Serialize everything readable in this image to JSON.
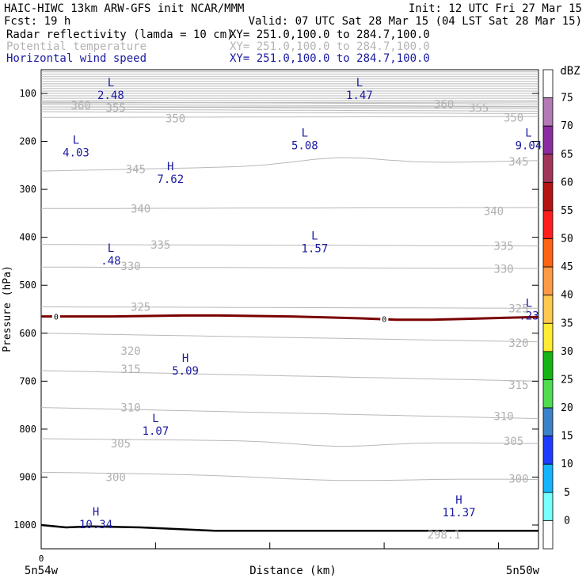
{
  "header": {
    "title_left": "HAIC-HIWC 13km ARW-GFS init   NCAR/MMM",
    "title_right": "Init: 12 UTC Fri 27 Mar 15",
    "fcst": "Fcst:   19 h",
    "valid": "Valid: 07 UTC Sat 28 Mar 15 (04 LST Sat 28 Mar 15)",
    "fields": [
      {
        "name": "Radar reflectivity (lamda = 10 cm)",
        "xy": "XY= 251.0,100.0 to 284.7,100.0",
        "color": "#000000"
      },
      {
        "name": "Potential temperature",
        "xy": "XY= 251.0,100.0 to 284.7,100.0",
        "color": "#b4b4b4"
      },
      {
        "name": "Horizontal wind speed",
        "xy": "XY= 251.0,100.0 to 284.7,100.0",
        "color": "#1a1aa0"
      }
    ]
  },
  "chart_data": {
    "type": "line",
    "ylabel": "Pressure (hPa)",
    "xlabel": "Distance (km)",
    "x_left_label": "5n54w",
    "x_right_label": "5n50w",
    "x_origin_label": "0",
    "y_ticks": [
      100,
      200,
      300,
      400,
      500,
      600,
      700,
      800,
      900,
      1000
    ],
    "y_range": [
      50,
      1050
    ],
    "theta_labels": [
      {
        "v": "360",
        "x": 0.08,
        "p": 125
      },
      {
        "v": "355",
        "x": 0.15,
        "p": 130
      },
      {
        "v": "350",
        "x": 0.27,
        "p": 152
      },
      {
        "v": "345",
        "x": 0.19,
        "p": 258
      },
      {
        "v": "340",
        "x": 0.2,
        "p": 340
      },
      {
        "v": "335",
        "x": 0.24,
        "p": 415
      },
      {
        "v": "330",
        "x": 0.18,
        "p": 460
      },
      {
        "v": "325",
        "x": 0.2,
        "p": 545
      },
      {
        "v": "320",
        "x": 0.18,
        "p": 637
      },
      {
        "v": "315",
        "x": 0.18,
        "p": 675
      },
      {
        "v": "310",
        "x": 0.18,
        "p": 755
      },
      {
        "v": "305",
        "x": 0.16,
        "p": 830
      },
      {
        "v": "300",
        "x": 0.15,
        "p": 900
      },
      {
        "v": "360",
        "x": 0.81,
        "p": 122
      },
      {
        "v": "355",
        "x": 0.88,
        "p": 130
      },
      {
        "v": "350",
        "x": 0.95,
        "p": 150
      },
      {
        "v": "345",
        "x": 0.96,
        "p": 242
      },
      {
        "v": "340",
        "x": 0.91,
        "p": 345
      },
      {
        "v": "335",
        "x": 0.93,
        "p": 418
      },
      {
        "v": "330",
        "x": 0.93,
        "p": 466
      },
      {
        "v": "325",
        "x": 0.96,
        "p": 548
      },
      {
        "v": "320",
        "x": 0.96,
        "p": 620
      },
      {
        "v": "315",
        "x": 0.96,
        "p": 708
      },
      {
        "v": "310",
        "x": 0.93,
        "p": 773
      },
      {
        "v": "305",
        "x": 0.95,
        "p": 825
      },
      {
        "v": "300",
        "x": 0.96,
        "p": 903
      },
      {
        "v": "298.1",
        "x": 0.81,
        "p": 1020
      }
    ],
    "wind_extrema": [
      {
        "kind": "L",
        "v": "2.48",
        "x": 0.14,
        "p": 90
      },
      {
        "kind": "L",
        "v": "1.47",
        "x": 0.64,
        "p": 90
      },
      {
        "kind": "L",
        "v": "4.03",
        "x": 0.07,
        "p": 210
      },
      {
        "kind": "H",
        "v": "7.62",
        "x": 0.26,
        "p": 265
      },
      {
        "kind": "L",
        "v": "5.08",
        "x": 0.53,
        "p": 195
      },
      {
        "kind": "L",
        "v": "9.04",
        "x": 0.98,
        "p": 195
      },
      {
        "kind": "L",
        "v": ".48",
        "x": 0.14,
        "p": 435
      },
      {
        "kind": "L",
        "v": "1.57",
        "x": 0.55,
        "p": 410
      },
      {
        "kind": "L",
        "v": ".23",
        "x": 1.0,
        "p": 550
      },
      {
        "kind": "H",
        "v": "5.09",
        "x": 0.29,
        "p": 665
      },
      {
        "kind": "L",
        "v": "1.07",
        "x": 0.23,
        "p": 790
      },
      {
        "kind": "H",
        "v": "11.37",
        "x": 0.84,
        "p": 960
      },
      {
        "kind": "H",
        "v": "10.34",
        "x": 0.11,
        "p": 985
      }
    ],
    "zero_contour_labels": [
      {
        "v": "0",
        "x": 0.03,
        "p": 565
      },
      {
        "v": "0",
        "x": 0.69,
        "p": 570
      }
    ]
  },
  "colorbar": {
    "unit": "dBZ",
    "levels": [
      "75",
      "70",
      "65",
      "60",
      "55",
      "50",
      "45",
      "40",
      "35",
      "30",
      "25",
      "20",
      "15",
      "10",
      "5",
      "0"
    ],
    "colors": [
      "#ffffff",
      "#b47ab4",
      "#8c2ca0",
      "#a0365a",
      "#b41414",
      "#ff1e1e",
      "#ff6414",
      "#ff9b46",
      "#ffc850",
      "#ffeb32",
      "#14b414",
      "#50dc50",
      "#3c82c8",
      "#1e3cff",
      "#14b4ff",
      "#78ffff",
      "#ffffff"
    ]
  }
}
